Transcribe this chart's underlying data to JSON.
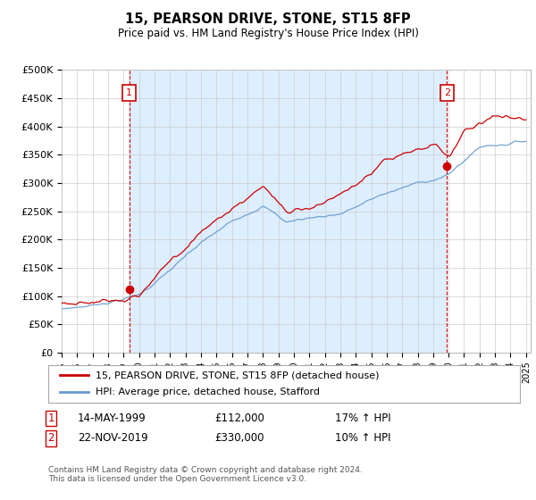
{
  "title": "15, PEARSON DRIVE, STONE, ST15 8FP",
  "subtitle": "Price paid vs. HM Land Registry's House Price Index (HPI)",
  "ylabel_ticks": [
    "£0",
    "£50K",
    "£100K",
    "£150K",
    "£200K",
    "£250K",
    "£300K",
    "£350K",
    "£400K",
    "£450K",
    "£500K"
  ],
  "ylim": [
    0,
    500000
  ],
  "ytick_vals": [
    0,
    50000,
    100000,
    150000,
    200000,
    250000,
    300000,
    350000,
    400000,
    450000,
    500000
  ],
  "xstart_year": 1995,
  "xend_year": 2025,
  "sale1_year": 1999.37,
  "sale1_price": 112000,
  "sale2_year": 2019.9,
  "sale2_price": 330000,
  "sale1_label": "1",
  "sale2_label": "2",
  "line_color_red": "#cc0000",
  "line_color_blue": "#6699cc",
  "dashed_vline_color": "#cc0000",
  "annotation_box_color": "#cc0000",
  "bg_fill_color": "#ddeeff",
  "legend_label_red": "15, PEARSON DRIVE, STONE, ST15 8FP (detached house)",
  "legend_label_blue": "HPI: Average price, detached house, Stafford",
  "table_row1": [
    "1",
    "14-MAY-1999",
    "£112,000",
    "17% ↑ HPI"
  ],
  "table_row2": [
    "2",
    "22-NOV-2019",
    "£330,000",
    "10% ↑ HPI"
  ],
  "footer": "Contains HM Land Registry data © Crown copyright and database right 2024.\nThis data is licensed under the Open Government Licence v3.0.",
  "background_color": "#ffffff",
  "grid_color": "#cccccc"
}
